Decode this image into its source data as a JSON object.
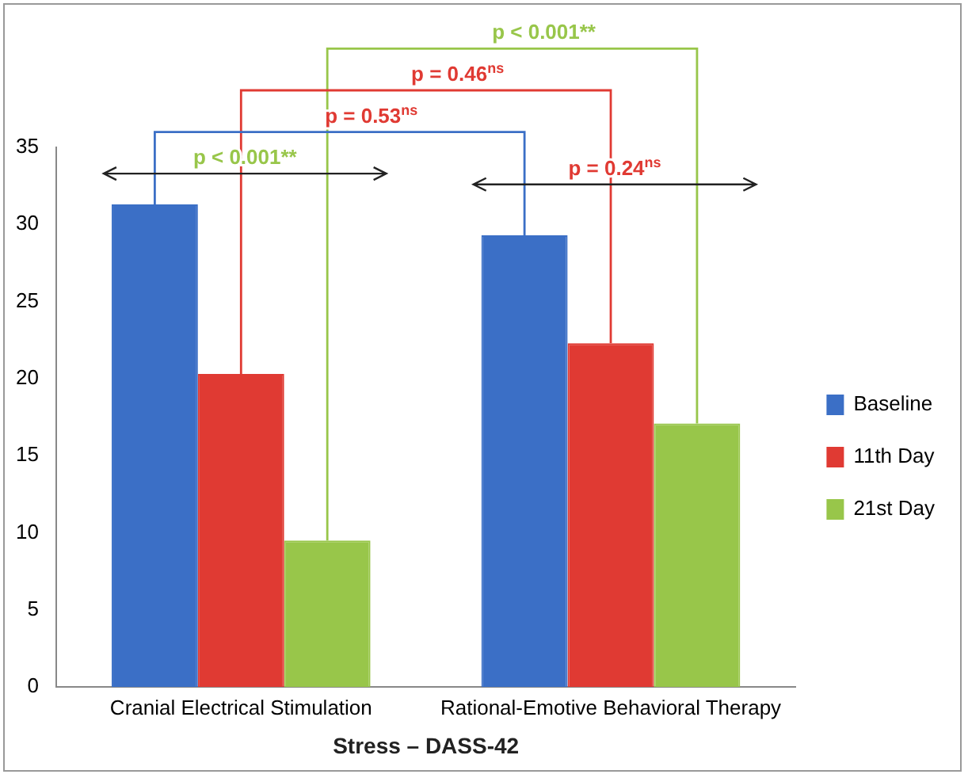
{
  "chart_data": {
    "type": "bar",
    "xlabel": "Stress – DASS-42",
    "categories": [
      "Cranial Electrical Stimulation",
      "Rational-Emotive Behavioral Therapy"
    ],
    "series": [
      {
        "name": "Baseline",
        "color": "#3b6fc6",
        "values": [
          31.3,
          29.3
        ]
      },
      {
        "name": "11th Day",
        "color": "#e03a33",
        "values": [
          20.3,
          22.3
        ]
      },
      {
        "name": "21st Day",
        "color": "#98c64a",
        "values": [
          9.5,
          17.1
        ]
      }
    ],
    "ylim": [
      0,
      35
    ],
    "yticks": [
      0,
      5,
      10,
      15,
      20,
      25,
      30,
      35
    ],
    "grid": false,
    "legend": "right",
    "annotations": [
      "p < 0.001**",
      "p = 0.46$^{ns}$",
      "p = 0.53$^{ns}$",
      "p < 0.001**",
      "p = 0.24$^{ns}$"
    ]
  }
}
